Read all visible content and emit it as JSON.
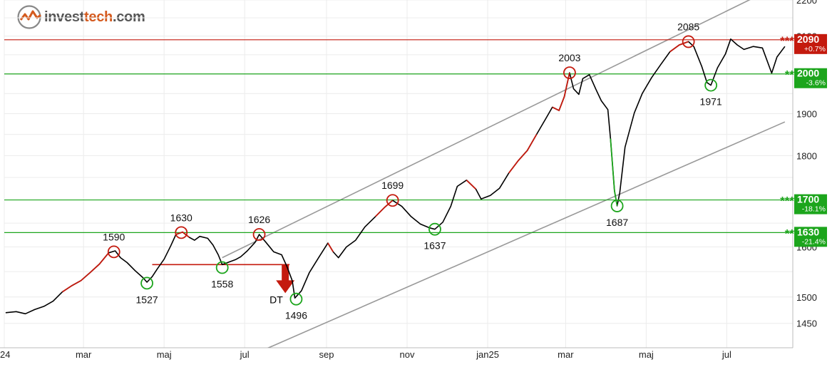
{
  "brand": {
    "part1": "invest",
    "part2": "tech",
    "part3": ".com"
  },
  "chart_data": {
    "type": "line",
    "xlim": [
      "2024-01-01",
      "2025-08-20"
    ],
    "ylim": [
      1405,
      2200
    ],
    "y_scale": "log",
    "grid": true,
    "x_ticks": [
      {
        "label": "24",
        "date": "2024-01-01"
      },
      {
        "label": "mar",
        "date": "2024-03-01"
      },
      {
        "label": "maj",
        "date": "2024-05-01"
      },
      {
        "label": "jul",
        "date": "2024-07-01"
      },
      {
        "label": "sep",
        "date": "2024-09-01"
      },
      {
        "label": "nov",
        "date": "2024-11-01"
      },
      {
        "label": "jan25",
        "date": "2025-01-01"
      },
      {
        "label": "mar",
        "date": "2025-03-01"
      },
      {
        "label": "maj",
        "date": "2025-05-01"
      },
      {
        "label": "jul",
        "date": "2025-07-01"
      }
    ],
    "y_ticks": [
      {
        "label": "2200",
        "value": 2200
      },
      {
        "label": "2100",
        "value": 2100
      },
      {
        "label": "1900",
        "value": 1900
      },
      {
        "label": "1800",
        "value": 1800
      },
      {
        "label": "1600",
        "value": 1600
      },
      {
        "label": "1500",
        "value": 1500
      },
      {
        "label": "1450",
        "value": 1450
      }
    ],
    "series": [
      {
        "color": "#000000",
        "points": [
          [
            "2024-01-02",
            1470
          ],
          [
            "2024-01-10",
            1472
          ],
          [
            "2024-01-17",
            1468
          ],
          [
            "2024-01-24",
            1476
          ],
          [
            "2024-01-31",
            1482
          ],
          [
            "2024-02-07",
            1492
          ],
          [
            "2024-02-14",
            1510
          ],
          [
            "2024-02-21",
            1522
          ],
          [
            "2024-02-28",
            1532
          ],
          [
            "2024-03-06",
            1548
          ],
          [
            "2024-03-13",
            1565
          ],
          [
            "2024-03-20",
            1588
          ],
          [
            "2024-03-25",
            1592
          ],
          [
            "2024-03-29",
            1578
          ],
          [
            "2024-04-03",
            1568
          ],
          [
            "2024-04-09",
            1552
          ],
          [
            "2024-04-15",
            1538
          ],
          [
            "2024-04-18",
            1529
          ],
          [
            "2024-04-22",
            1540
          ],
          [
            "2024-04-26",
            1556
          ],
          [
            "2024-05-01",
            1575
          ],
          [
            "2024-05-06",
            1602
          ],
          [
            "2024-05-10",
            1626
          ],
          [
            "2024-05-15",
            1631
          ],
          [
            "2024-05-20",
            1620
          ],
          [
            "2024-05-24",
            1614
          ],
          [
            "2024-05-28",
            1622
          ],
          [
            "2024-06-03",
            1618
          ],
          [
            "2024-06-07",
            1604
          ],
          [
            "2024-06-11",
            1584
          ],
          [
            "2024-06-14",
            1564
          ],
          [
            "2024-06-18",
            1568
          ],
          [
            "2024-06-24",
            1574
          ],
          [
            "2024-06-28",
            1580
          ],
          [
            "2024-07-03",
            1592
          ],
          [
            "2024-07-09",
            1610
          ],
          [
            "2024-07-12",
            1626
          ],
          [
            "2024-07-17",
            1610
          ],
          [
            "2024-07-23",
            1590
          ],
          [
            "2024-07-29",
            1584
          ],
          [
            "2024-08-02",
            1560
          ],
          [
            "2024-08-06",
            1532
          ],
          [
            "2024-08-08",
            1498
          ],
          [
            "2024-08-13",
            1512
          ],
          [
            "2024-08-19",
            1548
          ],
          [
            "2024-08-26",
            1578
          ],
          [
            "2024-09-02",
            1608
          ],
          [
            "2024-09-06",
            1590
          ],
          [
            "2024-09-10",
            1578
          ],
          [
            "2024-09-16",
            1600
          ],
          [
            "2024-09-23",
            1614
          ],
          [
            "2024-09-30",
            1642
          ],
          [
            "2024-10-08",
            1664
          ],
          [
            "2024-10-15",
            1684
          ],
          [
            "2024-10-21",
            1699
          ],
          [
            "2024-10-28",
            1686
          ],
          [
            "2024-11-04",
            1664
          ],
          [
            "2024-11-11",
            1648
          ],
          [
            "2024-11-18",
            1640
          ],
          [
            "2024-11-22",
            1637
          ],
          [
            "2024-11-28",
            1652
          ],
          [
            "2024-12-04",
            1686
          ],
          [
            "2024-12-09",
            1730
          ],
          [
            "2024-12-16",
            1744
          ],
          [
            "2024-12-23",
            1724
          ],
          [
            "2024-12-27",
            1702
          ],
          [
            "2025-01-03",
            1710
          ],
          [
            "2025-01-10",
            1726
          ],
          [
            "2025-01-17",
            1760
          ],
          [
            "2025-01-24",
            1788
          ],
          [
            "2025-01-31",
            1812
          ],
          [
            "2025-02-07",
            1850
          ],
          [
            "2025-02-14",
            1888
          ],
          [
            "2025-02-19",
            1916
          ],
          [
            "2025-02-24",
            1908
          ],
          [
            "2025-02-28",
            1942
          ],
          [
            "2025-03-04",
            2003
          ],
          [
            "2025-03-07",
            1962
          ],
          [
            "2025-03-11",
            1948
          ],
          [
            "2025-03-14",
            1988
          ],
          [
            "2025-03-19",
            1998
          ],
          [
            "2025-03-24",
            1960
          ],
          [
            "2025-03-28",
            1932
          ],
          [
            "2025-04-02",
            1910
          ],
          [
            "2025-04-04",
            1840
          ],
          [
            "2025-04-07",
            1720
          ],
          [
            "2025-04-09",
            1687
          ],
          [
            "2025-04-11",
            1716
          ],
          [
            "2025-04-15",
            1820
          ],
          [
            "2025-04-22",
            1902
          ],
          [
            "2025-04-28",
            1950
          ],
          [
            "2025-05-05",
            1990
          ],
          [
            "2025-05-12",
            2024
          ],
          [
            "2025-05-19",
            2058
          ],
          [
            "2025-05-26",
            2076
          ],
          [
            "2025-06-02",
            2085
          ],
          [
            "2025-06-06",
            2072
          ],
          [
            "2025-06-12",
            2020
          ],
          [
            "2025-06-16",
            1978
          ],
          [
            "2025-06-19",
            1971
          ],
          [
            "2025-06-24",
            2016
          ],
          [
            "2025-06-30",
            2052
          ],
          [
            "2025-07-04",
            2092
          ],
          [
            "2025-07-09",
            2076
          ],
          [
            "2025-07-14",
            2064
          ],
          [
            "2025-07-21",
            2072
          ],
          [
            "2025-07-28",
            2068
          ],
          [
            "2025-08-04",
            2002
          ],
          [
            "2025-08-08",
            2044
          ],
          [
            "2025-08-14",
            2072
          ]
        ]
      }
    ],
    "red_segments": [
      [
        "2024-02-14",
        "2024-03-20"
      ],
      [
        "2024-05-10",
        "2024-05-20"
      ],
      [
        "2024-09-02",
        "2024-09-06"
      ],
      [
        "2024-10-08",
        "2024-10-21"
      ],
      [
        "2024-12-16",
        "2024-12-23"
      ],
      [
        "2025-01-17",
        "2025-02-07"
      ],
      [
        "2025-02-19",
        "2025-03-04"
      ],
      [
        "2025-05-19",
        "2025-06-02"
      ]
    ],
    "green_segments": [
      [
        "2025-04-04",
        "2025-04-09"
      ]
    ],
    "support_resistance": [
      {
        "value": 2090,
        "color": "#c41a0e",
        "stars": "***",
        "label": "2090",
        "change": "+0.7%"
      },
      {
        "value": 2000,
        "color": "#1ca51c",
        "stars": "**",
        "label": "2000",
        "change": "-3.6%"
      },
      {
        "value": 1700,
        "color": "#1ca51c",
        "stars": "***",
        "label": "1700",
        "change": "-18.1%"
      },
      {
        "value": 1630,
        "color": "#1ca51c",
        "stars": "**",
        "label": "1630",
        "change": "-21.4%"
      }
    ],
    "trend_channel": [
      {
        "from": [
          "2024-06-14",
          1578
        ],
        "to": [
          "2025-08-14",
          2250
        ]
      },
      {
        "from": [
          "2024-06-25",
          1380
        ],
        "to": [
          "2025-08-14",
          1880
        ]
      }
    ],
    "tops": [
      {
        "date": "2024-03-24",
        "value": 1590,
        "label": "1590"
      },
      {
        "date": "2024-05-14",
        "value": 1630,
        "label": "1630"
      },
      {
        "date": "2024-07-12",
        "value": 1626,
        "label": "1626"
      },
      {
        "date": "2024-10-21",
        "value": 1699,
        "label": "1699"
      },
      {
        "date": "2025-03-04",
        "value": 2003,
        "label": "2003"
      },
      {
        "date": "2025-06-02",
        "value": 2085,
        "label": "2085"
      }
    ],
    "bottoms": [
      {
        "date": "2024-04-18",
        "value": 1527,
        "label": "1527"
      },
      {
        "date": "2024-06-14",
        "value": 1558,
        "label": "1558"
      },
      {
        "date": "2024-08-09",
        "value": 1496,
        "label": "1496"
      },
      {
        "date": "2024-11-22",
        "value": 1637,
        "label": "1637"
      },
      {
        "date": "2025-04-09",
        "value": 1687,
        "label": "1687"
      },
      {
        "date": "2025-06-19",
        "value": 1971,
        "label": "1971"
      }
    ],
    "pattern": {
      "label": "DT",
      "neckline": 1564,
      "from": "2024-04-22",
      "to": "2024-08-04"
    }
  }
}
